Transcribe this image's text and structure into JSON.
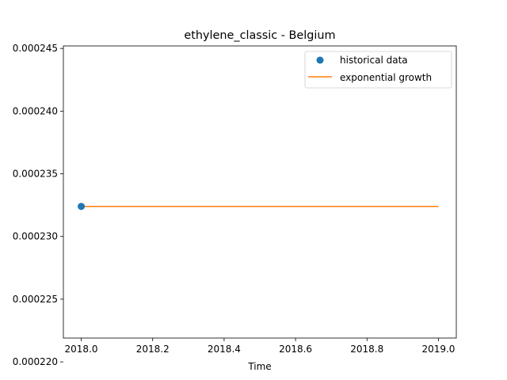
{
  "chart_data": {
    "type": "scatter",
    "title": "ethylene_classic - Belgium",
    "xlabel": "Time",
    "ylabel": "",
    "xlim": [
      2017.95,
      2019.05
    ],
    "ylim": [
      0.0002219,
      0.0002452
    ],
    "xticks": [
      2018.0,
      2018.2,
      2018.4,
      2018.6,
      2018.8,
      2019.0
    ],
    "xtick_labels": [
      "2018.0",
      "2018.2",
      "2018.4",
      "2018.6",
      "2018.8",
      "2019.0"
    ],
    "yticks": [
      0.00022,
      0.000225,
      0.00023,
      0.000235,
      0.00024,
      0.000245
    ],
    "ytick_labels": [
      "0.000220",
      "0.000225",
      "0.000230",
      "0.000235",
      "0.000240",
      "0.000245"
    ],
    "grid": false,
    "legend_position": "top-right",
    "series": [
      {
        "name": "historical data",
        "kind": "scatter",
        "color": "#1f77b4",
        "x": [
          2018.0
        ],
        "y": [
          0.0002324
        ]
      },
      {
        "name": "exponential growth",
        "kind": "line",
        "color": "#ff7f0e",
        "x": [
          2018.0,
          2019.0
        ],
        "y": [
          0.0002324,
          0.0002324
        ]
      }
    ]
  }
}
